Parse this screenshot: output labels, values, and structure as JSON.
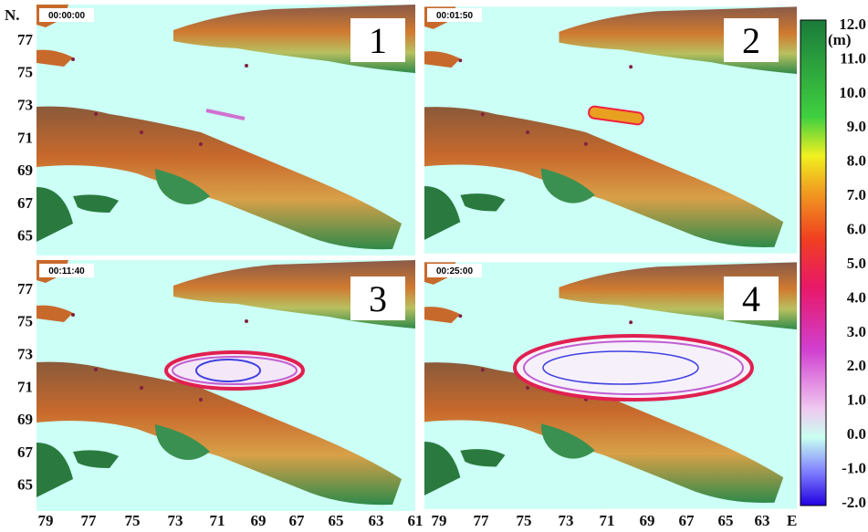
{
  "panels": [
    {
      "time": "00:00:00",
      "number": "1"
    },
    {
      "time": "00:01:50",
      "number": "2"
    },
    {
      "time": "00:11:40",
      "number": "3"
    },
    {
      "time": "00:25:00",
      "number": "4"
    }
  ],
  "y_axis": {
    "title": "N.",
    "labels": [
      "77",
      "75",
      "73",
      "71",
      "69",
      "67",
      "65"
    ]
  },
  "x_axis": {
    "title": "E",
    "left_labels": [
      "79",
      "77",
      "75",
      "73",
      "71",
      "69",
      "67",
      "65",
      "63",
      "61"
    ],
    "right_labels": [
      "79",
      "77",
      "75",
      "73",
      "71",
      "69",
      "67",
      "65",
      "63"
    ]
  },
  "colorbar": {
    "unit": "(m)",
    "labels": [
      "12.0",
      "11.0",
      "10.0",
      "9.0",
      "8.0",
      "7.0",
      "6.0",
      "5.0",
      "4.0",
      "3.0",
      "2.0",
      "1.0",
      "0.0",
      "-1.0",
      "-2.0"
    ]
  }
}
